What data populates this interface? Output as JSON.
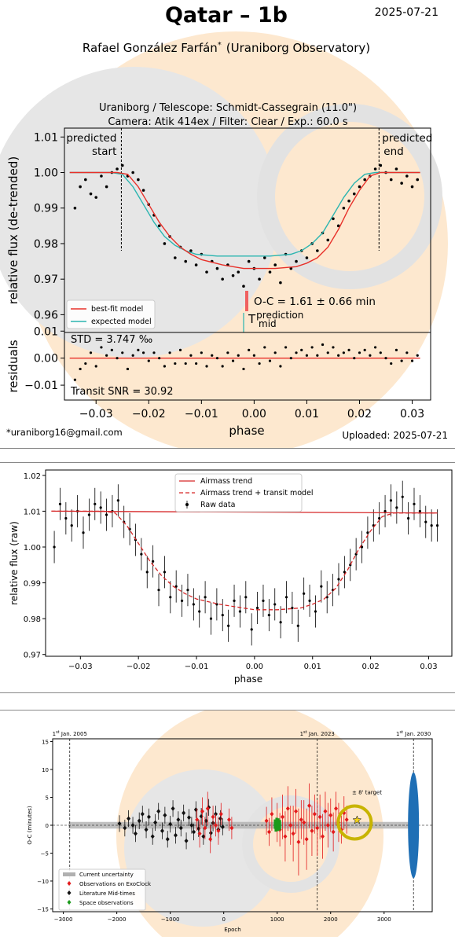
{
  "colors": {
    "model": "#e8312a",
    "expected": "#2bb5b0",
    "raw": "#000000",
    "trend": "#d62728",
    "exoclock": "#e31a1c",
    "literature": "#111111",
    "space": "#1a9a1a",
    "uncertainty": "#b0b0b0",
    "target_ring": "#c8b400",
    "future_band": "#1f6fb5",
    "watermark_fill": "#fde3c0",
    "watermark_gray": "#dedede"
  },
  "header": {
    "title": "Qatar – 1b",
    "date": "2025-07-21",
    "author": "Rafael González Farfán",
    "author_mark": "*",
    "affiliation": "(Uraniborg Observatory)",
    "subtitle1": "Uraniborg / Telescope: Schmidt-Cassegrain (11.0\")",
    "subtitle2": "Camera: Atik 414ex / Filter: Clear / Exp.: 60.0 s",
    "email": "*uraniborg16@gmail.com",
    "uploaded": "Uploaded: 2025-07-21"
  },
  "chart_data": [
    {
      "type": "scatter",
      "ylabel": "relative flux (de-trended)",
      "xlim": [
        -0.036,
        0.0335
      ],
      "ylim": [
        0.955,
        1.0125
      ],
      "yticks": [
        0.96,
        0.97,
        0.98,
        0.99,
        1.0,
        1.01
      ],
      "ytick_labels": [
        "0.96",
        "0.97",
        "0.98",
        "0.99",
        "1.00",
        "1.01"
      ],
      "predicted_start": {
        "x": -0.0252,
        "label1": "predicted",
        "label2": "start"
      },
      "predicted_end": {
        "x": 0.0237,
        "label1": "predicted",
        "label2": "end"
      },
      "oc_label": "O-C = 1.61 ± 0.66 min",
      "tmid_main": "T",
      "tmid_sup": "prediction",
      "tmid_sub": "mid",
      "legend": [
        "best-fit model",
        "expected model"
      ],
      "series": [
        {
          "name": "best-fit model",
          "x": [
            -0.035,
            -0.026,
            -0.024,
            -0.022,
            -0.02,
            -0.018,
            -0.016,
            -0.014,
            -0.012,
            -0.01,
            -0.006,
            -0.002,
            0.0,
            0.004,
            0.008,
            0.01,
            0.012,
            0.014,
            0.016,
            0.018,
            0.02,
            0.022,
            0.024,
            0.026,
            0.0315
          ],
          "y": [
            1.0,
            1.0,
            0.9995,
            0.996,
            0.991,
            0.986,
            0.982,
            0.979,
            0.977,
            0.9755,
            0.974,
            0.973,
            0.973,
            0.973,
            0.9735,
            0.9745,
            0.976,
            0.979,
            0.984,
            0.99,
            0.995,
            0.999,
            1.0,
            1.0,
            1.0
          ]
        },
        {
          "name": "expected model",
          "x": [
            -0.035,
            -0.027,
            -0.025,
            -0.023,
            -0.021,
            -0.019,
            -0.017,
            -0.015,
            -0.013,
            -0.011,
            -0.007,
            -0.003,
            -0.001,
            0.003,
            0.007,
            0.009,
            0.011,
            0.013,
            0.015,
            0.017,
            0.019,
            0.021,
            0.023,
            0.025,
            0.0315
          ],
          "y": [
            1.0,
            1.0,
            0.9995,
            0.996,
            0.991,
            0.986,
            0.982,
            0.9795,
            0.978,
            0.977,
            0.9765,
            0.9765,
            0.9765,
            0.9765,
            0.977,
            0.978,
            0.98,
            0.983,
            0.988,
            0.993,
            0.997,
            0.9995,
            1.0,
            1.0,
            1.0
          ]
        }
      ],
      "points": {
        "x": [
          -0.034,
          -0.033,
          -0.032,
          -0.031,
          -0.03,
          -0.029,
          -0.028,
          -0.027,
          -0.026,
          -0.025,
          -0.024,
          -0.023,
          -0.022,
          -0.021,
          -0.02,
          -0.019,
          -0.018,
          -0.017,
          -0.016,
          -0.015,
          -0.014,
          -0.013,
          -0.012,
          -0.011,
          -0.01,
          -0.009,
          -0.008,
          -0.007,
          -0.006,
          -0.005,
          -0.004,
          -0.003,
          -0.002,
          -0.001,
          0.0,
          0.001,
          0.002,
          0.003,
          0.004,
          0.005,
          0.006,
          0.007,
          0.008,
          0.009,
          0.01,
          0.011,
          0.012,
          0.013,
          0.014,
          0.015,
          0.016,
          0.017,
          0.018,
          0.019,
          0.02,
          0.021,
          0.022,
          0.023,
          0.024,
          0.025,
          0.026,
          0.027,
          0.028,
          0.029,
          0.03,
          0.031
        ],
        "y": [
          0.99,
          0.996,
          0.998,
          0.994,
          0.993,
          0.999,
          0.996,
          1.0,
          1.001,
          1.002,
          0.999,
          1.0,
          0.998,
          0.995,
          0.991,
          0.988,
          0.985,
          0.98,
          0.982,
          0.976,
          0.979,
          0.975,
          0.978,
          0.974,
          0.977,
          0.972,
          0.975,
          0.973,
          0.97,
          0.974,
          0.971,
          0.972,
          0.968,
          0.975,
          0.973,
          0.97,
          0.976,
          0.972,
          0.974,
          0.969,
          0.977,
          0.973,
          0.975,
          0.978,
          0.976,
          0.98,
          0.978,
          0.983,
          0.981,
          0.987,
          0.985,
          0.99,
          0.992,
          0.994,
          0.996,
          0.998,
          0.999,
          1.001,
          1.002,
          1.0,
          0.998,
          1.001,
          0.997,
          0.999,
          0.996,
          0.998
        ]
      }
    },
    {
      "type": "scatter",
      "ylabel": "residuals",
      "xlabel": "phase",
      "xlim": [
        -0.036,
        0.0335
      ],
      "ylim": [
        -0.0155,
        0.0095
      ],
      "yticks": [
        -0.01,
        0.0,
        0.01
      ],
      "ytick_labels": [
        "−0.01",
        "0.00",
        "0.01"
      ],
      "xticks": [
        -0.03,
        -0.02,
        -0.01,
        0.0,
        0.01,
        0.02,
        0.03
      ],
      "xtick_labels": [
        "−0.03",
        "−0.02",
        "−0.01",
        "0.00",
        "0.01",
        "0.02",
        "0.03"
      ],
      "std_label": "STD = 3.747 ‰",
      "snr_label": "Transit SNR = 30.92",
      "points": {
        "x": [
          -0.034,
          -0.033,
          -0.032,
          -0.031,
          -0.03,
          -0.029,
          -0.028,
          -0.027,
          -0.026,
          -0.025,
          -0.024,
          -0.023,
          -0.022,
          -0.021,
          -0.02,
          -0.019,
          -0.018,
          -0.017,
          -0.016,
          -0.015,
          -0.014,
          -0.013,
          -0.012,
          -0.011,
          -0.01,
          -0.009,
          -0.008,
          -0.007,
          -0.006,
          -0.005,
          -0.004,
          -0.003,
          -0.002,
          -0.001,
          0.0,
          0.001,
          0.002,
          0.003,
          0.004,
          0.005,
          0.006,
          0.007,
          0.008,
          0.009,
          0.01,
          0.011,
          0.012,
          0.013,
          0.014,
          0.015,
          0.016,
          0.017,
          0.018,
          0.019,
          0.02,
          0.021,
          0.022,
          0.023,
          0.024,
          0.025,
          0.026,
          0.027,
          0.028,
          0.029,
          0.03,
          0.031
        ],
        "y": [
          -0.008,
          -0.004,
          -0.002,
          0.002,
          -0.003,
          0.004,
          0.001,
          0.003,
          0.0,
          0.002,
          -0.004,
          0.001,
          0.003,
          0.002,
          -0.001,
          0.002,
          0.0,
          -0.003,
          0.002,
          -0.002,
          0.003,
          -0.002,
          0.001,
          -0.002,
          0.002,
          -0.003,
          0.001,
          0.0,
          -0.003,
          0.002,
          -0.001,
          0.001,
          -0.004,
          0.003,
          0.001,
          -0.002,
          0.004,
          -0.001,
          0.002,
          -0.003,
          0.004,
          0.0,
          0.002,
          0.003,
          0.001,
          0.004,
          0.001,
          0.005,
          0.002,
          0.004,
          0.001,
          0.002,
          0.003,
          0.0,
          0.002,
          0.003,
          0.001,
          0.004,
          0.002,
          0.0,
          -0.002,
          0.003,
          -0.001,
          0.002,
          -0.001,
          0.001
        ]
      }
    },
    {
      "type": "scatter",
      "xlabel": "phase",
      "ylabel": "relative flux (raw)",
      "xlim": [
        -0.036,
        0.034
      ],
      "ylim": [
        0.9695,
        1.0215
      ],
      "yticks": [
        0.97,
        0.98,
        0.99,
        1.0,
        1.01,
        1.02
      ],
      "ytick_labels": [
        "0.97",
        "0.98",
        "0.99",
        "1.00",
        "1.01",
        "1.02"
      ],
      "xticks": [
        -0.03,
        -0.02,
        -0.01,
        0.0,
        0.01,
        0.02,
        0.03
      ],
      "xtick_labels": [
        "−0.03",
        "−0.02",
        "−0.01",
        "0.00",
        "0.01",
        "0.02",
        "0.03"
      ],
      "legend": [
        "Airmass trend",
        "Airmass trend + transit model",
        "Raw data"
      ],
      "series": [
        {
          "name": "Airmass trend",
          "x": [
            -0.035,
            0.0315
          ],
          "y": [
            1.01,
            1.0095
          ]
        },
        {
          "name": "Airmass trend + transit model",
          "x": [
            -0.035,
            -0.026,
            -0.024,
            -0.022,
            -0.02,
            -0.018,
            -0.016,
            -0.014,
            -0.012,
            -0.01,
            -0.006,
            -0.002,
            0.0,
            0.004,
            0.008,
            0.01,
            0.012,
            0.014,
            0.016,
            0.018,
            0.02,
            0.022,
            0.024,
            0.026,
            0.0315
          ],
          "y": [
            1.01,
            1.01,
            1.0095,
            1.006,
            1.001,
            0.996,
            0.992,
            0.989,
            0.987,
            0.9855,
            0.984,
            0.983,
            0.9825,
            0.9825,
            0.983,
            0.984,
            0.9855,
            0.9885,
            0.9935,
            0.9995,
            1.0045,
            1.0085,
            1.0095,
            1.0095,
            1.0095
          ]
        }
      ],
      "points": {
        "x": [
          -0.0345,
          -0.0335,
          -0.0325,
          -0.0315,
          -0.0305,
          -0.0295,
          -0.0285,
          -0.0275,
          -0.0265,
          -0.0255,
          -0.0245,
          -0.0235,
          -0.0225,
          -0.0215,
          -0.0205,
          -0.0195,
          -0.0185,
          -0.0175,
          -0.0165,
          -0.0155,
          -0.0145,
          -0.0135,
          -0.0125,
          -0.0115,
          -0.0105,
          -0.0095,
          -0.0085,
          -0.0075,
          -0.0065,
          -0.0055,
          -0.0045,
          -0.0035,
          -0.0025,
          -0.0015,
          -0.0005,
          0.0005,
          0.0015,
          0.0025,
          0.0035,
          0.0045,
          0.0055,
          0.0065,
          0.0075,
          0.0085,
          0.0095,
          0.0105,
          0.0115,
          0.0125,
          0.0135,
          0.0145,
          0.0155,
          0.0165,
          0.0175,
          0.0185,
          0.0195,
          0.0205,
          0.0215,
          0.0225,
          0.0235,
          0.0245,
          0.0255,
          0.0265,
          0.0275,
          0.0285,
          0.0295,
          0.0305,
          0.0315
        ],
        "y": [
          1.0,
          1.012,
          1.008,
          1.006,
          1.01,
          1.004,
          1.009,
          1.012,
          1.011,
          1.009,
          1.01,
          1.013,
          1.007,
          1.005,
          1.002,
          0.998,
          0.993,
          0.996,
          0.988,
          0.993,
          0.986,
          0.989,
          0.985,
          0.988,
          0.984,
          0.982,
          0.986,
          0.98,
          0.984,
          0.981,
          0.978,
          0.985,
          0.982,
          0.986,
          0.977,
          0.983,
          0.985,
          0.981,
          0.984,
          0.979,
          0.986,
          0.983,
          0.978,
          0.987,
          0.985,
          0.982,
          0.989,
          0.986,
          0.988,
          0.991,
          0.993,
          0.995,
          0.998,
          1.0,
          1.004,
          1.006,
          1.008,
          1.01,
          1.013,
          1.011,
          1.014,
          1.008,
          1.012,
          1.01,
          1.007,
          1.006,
          1.006
        ],
        "err": 0.0045
      }
    },
    {
      "type": "scatter",
      "xlabel": "Epoch",
      "ylabel": "O-C (minutes)",
      "xlim": [
        -3200,
        3900
      ],
      "ylim": [
        -15.5,
        15.5
      ],
      "yticks": [
        -15,
        -10,
        -5,
        0,
        5,
        10,
        15
      ],
      "ytick_labels": [
        "−15",
        "−10",
        "−5",
        "0",
        "5",
        "10",
        "15"
      ],
      "xticks": [
        -3000,
        -2000,
        -1000,
        0,
        1000,
        2000,
        3000
      ],
      "xtick_labels": [
        "−3000",
        "−2000",
        "−1000",
        "0",
        "1000",
        "2000",
        "3000"
      ],
      "date_markers": [
        {
          "x": -2880,
          "label_pre": "1",
          "label_sup": "st",
          "label_post": " Jan. 2005"
        },
        {
          "x": 1750,
          "label_pre": "1",
          "label_sup": "st",
          "label_post": " Jan. 2023"
        },
        {
          "x": 3550,
          "label_pre": "1",
          "label_sup": "st",
          "label_post": " Jan. 2030"
        }
      ],
      "target_label": "± 8' target",
      "target": {
        "x": 2450,
        "y": 0.5
      },
      "future_band": {
        "x": 3550,
        "half_height": 9.5
      },
      "legend": [
        "Current uncertainty",
        "Observations on ExoClock",
        "Literature Mid-times",
        "Space observations"
      ],
      "literature": {
        "x": [
          -1950,
          -1850,
          -1780,
          -1700,
          -1650,
          -1580,
          -1520,
          -1450,
          -1400,
          -1330,
          -1280,
          -1220,
          -1150,
          -1100,
          -1050,
          -1000,
          -950,
          -900,
          -850,
          -800,
          -750,
          -700,
          -650,
          -600,
          -560,
          -520,
          -470,
          -420,
          -380,
          -330,
          -280,
          -240,
          -200,
          -150,
          -100,
          -60,
          -20
        ],
        "y": [
          0.3,
          -0.5,
          1.2,
          0.0,
          -1.5,
          0.8,
          2.0,
          -0.8,
          1.5,
          -2.0,
          0.5,
          2.5,
          -1.0,
          1.8,
          -2.5,
          0.2,
          3.0,
          -1.8,
          1.0,
          -0.5,
          2.2,
          -2.8,
          1.4,
          0.0,
          -1.2,
          2.8,
          -0.6,
          1.6,
          -2.0,
          0.8,
          3.2,
          -1.4,
          0.4,
          2.0,
          -0.8,
          1.2,
          -0.3
        ]
      },
      "exoclock": {
        "x": [
          -500,
          -450,
          -400,
          -350,
          -300,
          -250,
          -200,
          -150,
          -100,
          -50,
          100,
          150,
          800,
          850,
          900,
          1000,
          1050,
          1100,
          1150,
          1200,
          1250,
          1300,
          1350,
          1400,
          1450,
          1500,
          1550,
          1600,
          1650,
          1700,
          1750,
          1800,
          1850,
          1900,
          1950,
          2000,
          2050,
          2100,
          2150,
          2200,
          2250,
          2300
        ],
        "y": [
          1.0,
          -1.5,
          2.5,
          -0.5,
          3.0,
          -2.5,
          1.5,
          0.0,
          -1.0,
          2.0,
          1.0,
          -0.5,
          0.8,
          -1.2,
          2.0,
          0.5,
          -0.8,
          1.5,
          -2.0,
          3.0,
          0.0,
          -1.5,
          2.5,
          -3.0,
          1.0,
          0.5,
          -2.5,
          3.5,
          -1.0,
          2.0,
          -0.5,
          1.5,
          -2.0,
          2.5,
          0.0,
          1.8,
          -1.2,
          3.0,
          0.5,
          -0.8,
          2.2,
          1.0
        ],
        "err": [
          2.0,
          2.5,
          2.5,
          2.0,
          3.0,
          2.5,
          2.0,
          2.0,
          2.5,
          2.0,
          2.0,
          2.0,
          2.5,
          2.5,
          3.0,
          3.5,
          3.0,
          4.0,
          4.5,
          4.0,
          3.5,
          5.0,
          4.0,
          6.0,
          3.5,
          4.0,
          5.5,
          4.0,
          4.5,
          3.5,
          5.0,
          4.0,
          4.0,
          3.5,
          4.0,
          3.0,
          3.5,
          3.0,
          3.5,
          2.5,
          3.0,
          2.5
        ]
      },
      "space": {
        "x": [
          960,
          975,
          990,
          1005,
          1020,
          1035,
          1050
        ],
        "y": [
          0.2,
          -0.3,
          0.5,
          -0.2,
          0.4,
          -0.1,
          0.1
        ]
      }
    }
  ]
}
